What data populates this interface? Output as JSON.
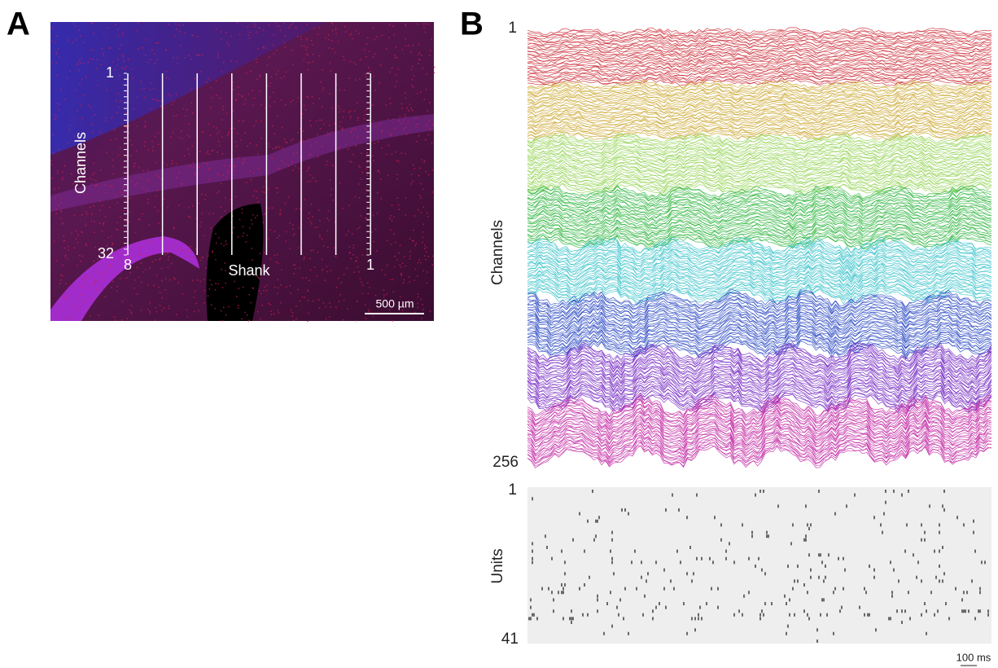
{
  "panel_a": {
    "label": "A",
    "channel_top": "1",
    "channel_axis": "Channels",
    "channel_bottom": "32",
    "shank_left": "8",
    "shank_axis": "Shank",
    "shank_right": "1",
    "scale_bar": "500 µm"
  },
  "panel_b": {
    "label": "B",
    "channel_top": "1",
    "channel_axis": "Channels",
    "channel_bottom": "256",
    "unit_top": "1",
    "unit_axis": "Units",
    "unit_bottom": "41",
    "time_scale": "100 ms"
  }
}
